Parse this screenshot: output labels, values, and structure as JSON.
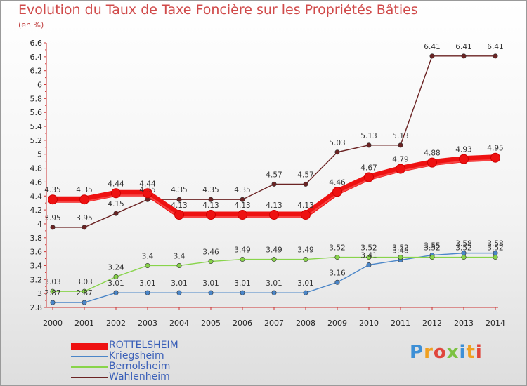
{
  "title": "Evolution du Taux de Taxe Foncière sur les Propriétés Bâties",
  "unit_label": "(en %)",
  "brand": "Proxiti",
  "chart_data": {
    "type": "line",
    "title": "Evolution du Taux de Taxe Foncière sur les Propriétés Bâties",
    "ylabel": "(en %)",
    "xlabel": "",
    "x": [
      2000,
      2001,
      2002,
      2003,
      2004,
      2005,
      2006,
      2007,
      2008,
      2009,
      2010,
      2011,
      2012,
      2013,
      2014
    ],
    "ylim": [
      2.8,
      6.6
    ],
    "yticks": [
      2.8,
      3,
      3.2,
      3.4,
      3.6,
      3.8,
      4,
      4.2,
      4.4,
      4.6,
      4.8,
      5,
      5.2,
      5.4,
      5.6,
      5.8,
      6,
      6.2,
      6.4,
      6.6
    ],
    "grid": false,
    "legend_position": "bottom-left",
    "series": [
      {
        "name": "ROTTELSHEIM",
        "color": "#ee1111",
        "emphasis": true,
        "values": [
          4.35,
          4.35,
          4.44,
          4.44,
          4.13,
          4.13,
          4.13,
          4.13,
          4.13,
          4.46,
          4.67,
          4.79,
          4.88,
          4.93,
          4.95
        ]
      },
      {
        "name": "Kriegsheim",
        "color": "#4b86c8",
        "emphasis": false,
        "values": [
          2.87,
          2.87,
          3.01,
          3.01,
          3.01,
          3.01,
          3.01,
          3.01,
          3.01,
          3.16,
          3.41,
          3.48,
          3.55,
          3.58,
          3.58
        ]
      },
      {
        "name": "Bernolsheim",
        "color": "#88d44a",
        "emphasis": false,
        "values": [
          3.03,
          3.03,
          3.24,
          3.4,
          3.4,
          3.46,
          3.49,
          3.49,
          3.49,
          3.52,
          3.52,
          3.52,
          3.52,
          3.52,
          3.52
        ]
      },
      {
        "name": "Wahlenheim",
        "color": "#6b2323",
        "emphasis": false,
        "values": [
          3.95,
          3.95,
          4.15,
          4.35,
          4.35,
          4.35,
          4.35,
          4.57,
          4.57,
          5.03,
          5.13,
          5.13,
          6.41,
          6.41,
          6.41
        ]
      }
    ]
  }
}
